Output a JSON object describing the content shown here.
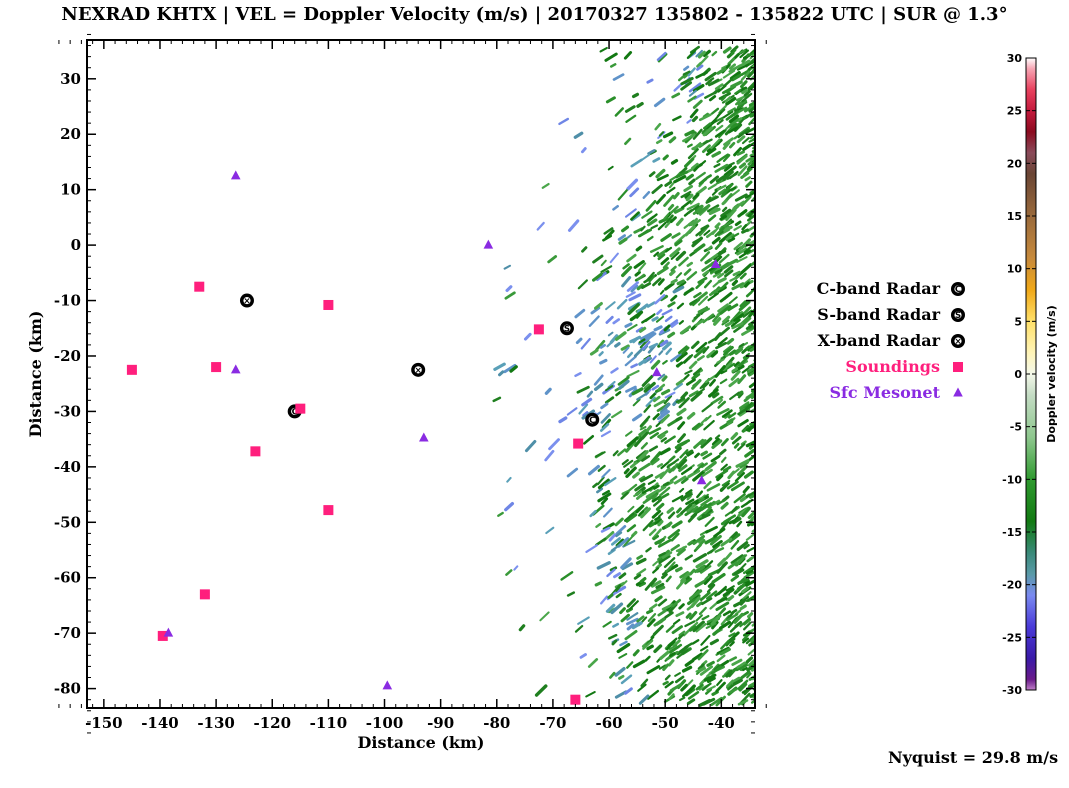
{
  "title": "NEXRAD KHTX | VEL = Doppler Velocity (m/s) | 20170327 135802 - 135822 UTC | SUR @ 1.3°",
  "footer": {
    "nyquist": "Nyquist = 29.8 m/s"
  },
  "chart_data": {
    "type": "scatter",
    "title": "NEXRAD KHTX | VEL = Doppler Velocity (m/s) | 20170327 135802 - 135822 UTC | SUR @ 1.3°",
    "xlabel": "Distance (km)",
    "ylabel": "Distance (km)",
    "xlim": [
      -153,
      -34
    ],
    "ylim": [
      -83.5,
      37
    ],
    "x_ticks": [
      -150,
      -140,
      -130,
      -120,
      -110,
      -100,
      -90,
      -80,
      -70,
      -60,
      -50,
      -40
    ],
    "y_ticks": [
      30,
      20,
      10,
      0,
      -10,
      -20,
      -30,
      -40,
      -50,
      -60,
      -70,
      -80
    ],
    "grid": false,
    "legend_position": "right",
    "series": [
      {
        "name": "C-band Radar",
        "marker": "C",
        "color": "#000000",
        "points": [
          [
            -116,
            -30
          ],
          [
            -63,
            -31.5
          ]
        ]
      },
      {
        "name": "S-band Radar",
        "marker": "S",
        "color": "#000000",
        "points": [
          [
            -67.5,
            -15
          ]
        ]
      },
      {
        "name": "X-band Radar",
        "marker": "X",
        "color": "#000000",
        "points": [
          [
            -124.5,
            -10
          ],
          [
            -94,
            -22.5
          ]
        ]
      },
      {
        "name": "Soundings",
        "marker": "square",
        "color": "#ff1f7d",
        "points": [
          [
            -133,
            -7.5
          ],
          [
            -110,
            -10.8
          ],
          [
            -145,
            -22.5
          ],
          [
            -130,
            -22
          ],
          [
            -115,
            -29.5
          ],
          [
            -123,
            -37.2
          ],
          [
            -110,
            -47.8
          ],
          [
            -132,
            -63
          ],
          [
            -139.5,
            -70.5
          ],
          [
            -72.5,
            -15.2
          ],
          [
            -65.5,
            -35.8
          ],
          [
            -66,
            -82
          ]
        ]
      },
      {
        "name": "Sfc Mesonet",
        "marker": "triangle",
        "color": "#8a2be2",
        "points": [
          [
            -126.5,
            12.5
          ],
          [
            -126.5,
            -22.5
          ],
          [
            -81.5,
            0
          ],
          [
            -93,
            -34.8
          ],
          [
            -138.5,
            -70
          ],
          [
            -99.5,
            -79.5
          ],
          [
            -51.5,
            -23
          ],
          [
            -43.5,
            -42.5
          ],
          [
            -41,
            -3.5
          ]
        ]
      }
    ],
    "velocity_field": {
      "description_visible": "radar velocity echoes",
      "region_x_km": [
        -85,
        -34
      ],
      "region_y_km": [
        -83,
        35
      ]
    },
    "colorbar": {
      "label": "Doppler velocity (m/s)",
      "range": [
        -30,
        30
      ],
      "ticks": [
        30,
        25,
        20,
        15,
        10,
        5,
        0,
        -5,
        -10,
        -15,
        -20,
        -25,
        -30
      ],
      "stops": [
        {
          "value": 30,
          "color": "#ffffff"
        },
        {
          "value": 29,
          "color": "#f7a6b4"
        },
        {
          "value": 27,
          "color": "#e8415e"
        },
        {
          "value": 25,
          "color": "#c41a3d"
        },
        {
          "value": 23,
          "color": "#8b0a1f"
        },
        {
          "value": 21,
          "color": "#8a4a5a"
        },
        {
          "value": 19,
          "color": "#6a4534"
        },
        {
          "value": 15,
          "color": "#9a6a3c"
        },
        {
          "value": 11,
          "color": "#c78a3c"
        },
        {
          "value": 8,
          "color": "#f0a818"
        },
        {
          "value": 5,
          "color": "#ffe06a"
        },
        {
          "value": 2,
          "color": "#fff4b8"
        },
        {
          "value": 0,
          "color": "#f4f8ea"
        },
        {
          "value": -2,
          "color": "#c4dcc4"
        },
        {
          "value": -6,
          "color": "#8ec78e"
        },
        {
          "value": -10,
          "color": "#2f9a2f"
        },
        {
          "value": -14,
          "color": "#127a12"
        },
        {
          "value": -17,
          "color": "#3a8a7a"
        },
        {
          "value": -19,
          "color": "#5a9aa8"
        },
        {
          "value": -21,
          "color": "#7a8af0"
        },
        {
          "value": -24,
          "color": "#4a3ad8"
        },
        {
          "value": -27,
          "color": "#3a1aa8"
        },
        {
          "value": -29,
          "color": "#6a1a8a"
        },
        {
          "value": -30,
          "color": "#c080c8"
        }
      ]
    }
  }
}
